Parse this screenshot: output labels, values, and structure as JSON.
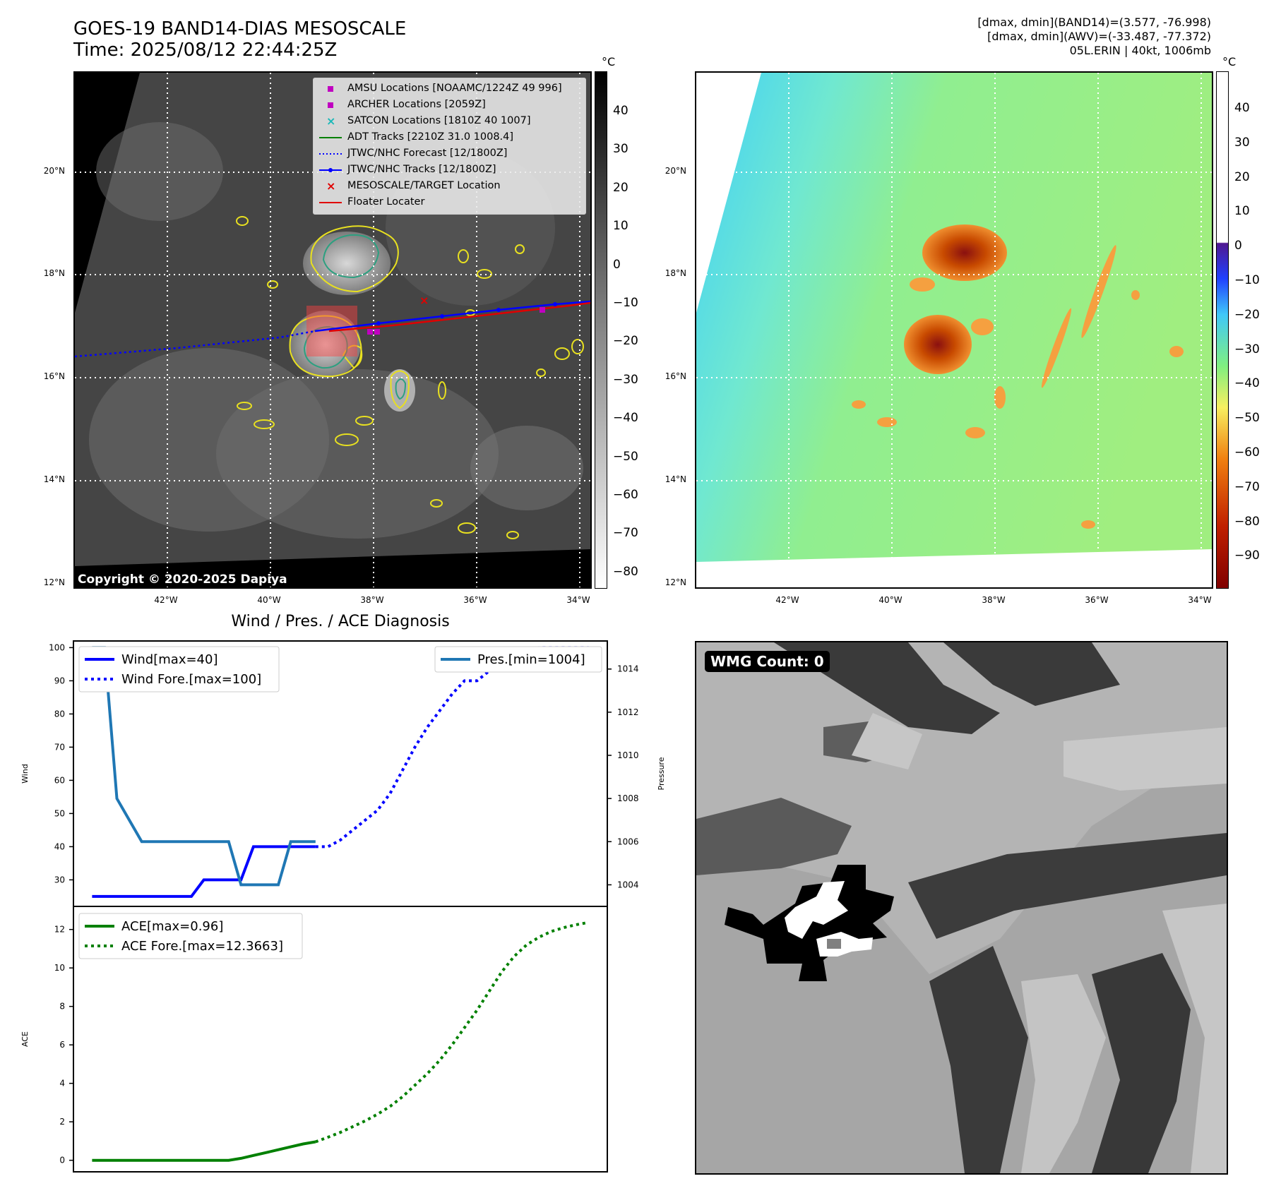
{
  "header": {
    "title_line1": "GOES-19 BAND14-DIAS MESOSCALE",
    "title_line2": "Time: 2025/08/12 22:44:25Z",
    "info_line1": "[dmax, dmin](BAND14)=(3.577, -76.998)",
    "info_line2": "[dmax, dmin](AWV)=(-33.487, -77.372)",
    "info_line3": "05L.ERIN | 40kt, 1006mb"
  },
  "map": {
    "lat_labels": [
      "20°N",
      "18°N",
      "16°N",
      "14°N",
      "12°N"
    ],
    "lon_labels": [
      "42°W",
      "40°W",
      "38°W",
      "36°W",
      "34°W"
    ],
    "copyright": "Copyright © 2020-2025 Dapiya",
    "legend": [
      {
        "label": "AMSU Locations [NOAAMC/1224Z 49 996]",
        "marker": "square",
        "color": "#c000c0"
      },
      {
        "label": "ARCHER Locations [2059Z]",
        "marker": "square",
        "color": "#c000c0"
      },
      {
        "label": "SATCON Locations [1810Z 40 1007]",
        "marker": "x",
        "color": "#1ab8b8"
      },
      {
        "label": "ADT Tracks [2210Z 31.0 1008.4]",
        "marker": "line",
        "color": "#008000"
      },
      {
        "label": "JTWC/NHC Forecast [12/1800Z]",
        "marker": "dotted",
        "color": "#0000ff"
      },
      {
        "label": "JTWC/NHC Tracks [12/1800Z]",
        "marker": "line-dot",
        "color": "#0000ff"
      },
      {
        "label": "MESOSCALE/TARGET Location",
        "marker": "x",
        "color": "#e00000"
      },
      {
        "label": "Floater Locater",
        "marker": "line",
        "color": "#e00000"
      }
    ]
  },
  "colorbar_left": {
    "unit": "°C",
    "ticks": [
      "40",
      "30",
      "20",
      "10",
      "0",
      "−10",
      "−20",
      "−30",
      "−40",
      "−50",
      "−60",
      "−70",
      "−80"
    ]
  },
  "colorbar_right": {
    "unit": "°C",
    "ticks": [
      "40",
      "30",
      "20",
      "10",
      "0",
      "−10",
      "−20",
      "−30",
      "−40",
      "−50",
      "−60",
      "−70",
      "−80",
      "−90"
    ]
  },
  "wmg": {
    "label": "WMG Count: 0"
  },
  "chart_data": [
    {
      "type": "line",
      "title": "Wind / Pres. / ACE Diagnosis",
      "ylabel": "Wind",
      "y2label": "Pressure",
      "ylim": [
        22,
        102
      ],
      "y2lim": [
        1003,
        1015.3
      ],
      "yticks": [
        "100",
        "90",
        "80",
        "70",
        "60",
        "50",
        "40",
        "30"
      ],
      "y2ticks": [
        "1014",
        "1012",
        "1010",
        "1008",
        "1006",
        "1004"
      ],
      "x": [
        0,
        1,
        2,
        3,
        4,
        5,
        6,
        7,
        8,
        9,
        10,
        11,
        12,
        13,
        14,
        15,
        16,
        17,
        18,
        19,
        20,
        21,
        22,
        23,
        24,
        25,
        26,
        27,
        28,
        29,
        30,
        31,
        32,
        33,
        34,
        35,
        36,
        37,
        38,
        39,
        40
      ],
      "series": [
        {
          "name": "Wind[max=40]",
          "axis": "left",
          "color": "#0000ff",
          "style": "solid",
          "x": [
            0,
            8,
            9,
            11,
            12,
            12.5,
            13,
            18
          ],
          "values": [
            25,
            25,
            30,
            30,
            30,
            35,
            40,
            40
          ]
        },
        {
          "name": "Wind Fore.[max=100]",
          "axis": "left",
          "color": "#0000ff",
          "style": "dotted",
          "x": [
            18,
            19,
            20,
            21,
            22,
            23,
            24,
            25,
            26,
            27,
            28,
            29,
            30,
            31,
            32,
            33,
            34,
            35,
            36,
            37,
            38,
            39,
            40
          ],
          "values": [
            40,
            40,
            42,
            45,
            48,
            51,
            56,
            63,
            70,
            76,
            81,
            86,
            90,
            90,
            93,
            95,
            97,
            99,
            100,
            100,
            100,
            100,
            100
          ]
        },
        {
          "name": "Pres.[min=1004]",
          "axis": "right",
          "color": "#1f77b4",
          "style": "solid",
          "x": [
            0,
            1,
            2,
            3,
            4,
            5,
            6,
            7,
            8,
            9,
            10,
            11,
            12,
            13,
            14,
            15,
            16,
            17,
            18
          ],
          "values": [
            1015,
            1015,
            1008,
            1007,
            1006,
            1006,
            1006,
            1006,
            1006,
            1006,
            1006,
            1006,
            1004,
            1004,
            1004,
            1004,
            1006,
            1006,
            1006
          ]
        }
      ]
    },
    {
      "type": "line",
      "ylabel": "ACE",
      "ylim": [
        -0.6,
        13.2
      ],
      "yticks": [
        "12",
        "10",
        "8",
        "6",
        "4",
        "2",
        "0"
      ],
      "series": [
        {
          "name": "ACE[max=0.96]",
          "color": "#008000",
          "style": "solid",
          "x": [
            0,
            8,
            10,
            11,
            12,
            13,
            14,
            15,
            16,
            17,
            18
          ],
          "values": [
            0,
            0,
            0,
            0,
            0.1,
            0.25,
            0.4,
            0.55,
            0.7,
            0.85,
            0.96
          ]
        },
        {
          "name": "ACE Fore.[max=12.3663]",
          "color": "#008000",
          "style": "dotted",
          "x": [
            18,
            19,
            20,
            21,
            22,
            23,
            24,
            25,
            26,
            27,
            28,
            29,
            30,
            31,
            32,
            33,
            34,
            35,
            36,
            37,
            38,
            39,
            40
          ],
          "values": [
            0.96,
            1.2,
            1.45,
            1.75,
            2.05,
            2.4,
            2.8,
            3.3,
            3.9,
            4.5,
            5.2,
            6.0,
            6.9,
            7.8,
            8.8,
            9.8,
            10.6,
            11.2,
            11.6,
            11.9,
            12.1,
            12.25,
            12.3663
          ]
        }
      ]
    }
  ]
}
